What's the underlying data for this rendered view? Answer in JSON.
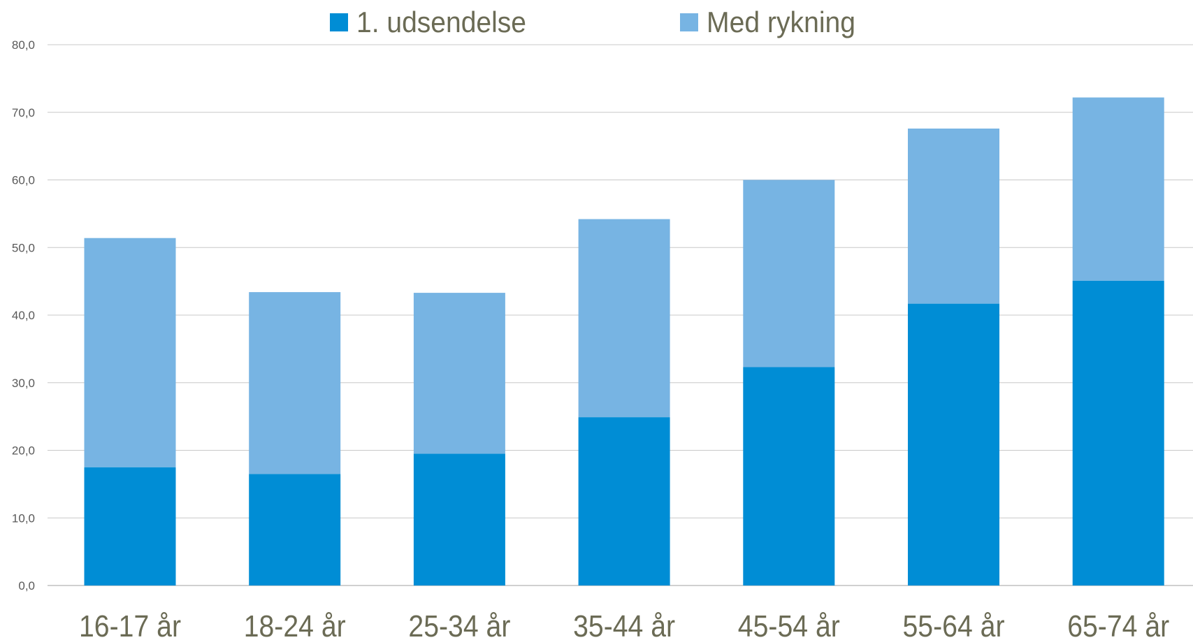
{
  "chart_data": {
    "type": "bar",
    "stacked": true,
    "categories": [
      "16-17 år",
      "18-24 år",
      "25-34 år",
      "35-44 år",
      "45-54 år",
      "55-64 år",
      "65-74 år"
    ],
    "series": [
      {
        "name": "1. udsendelse",
        "color": "#008dd5",
        "values": [
          17.5,
          16.5,
          19.5,
          24.9,
          32.3,
          41.7,
          45.1
        ]
      },
      {
        "name": "Med rykning",
        "color": "#77b4e3",
        "values": [
          33.9,
          26.9,
          23.8,
          29.3,
          27.7,
          25.9,
          27.1
        ]
      }
    ],
    "ylim": [
      0,
      80
    ],
    "yticks": [
      "0,0",
      "10,0",
      "20,0",
      "30,0",
      "40,0",
      "50,0",
      "60,0",
      "70,0",
      "80,0"
    ],
    "ytick_values": [
      0,
      10,
      20,
      30,
      40,
      50,
      60,
      70,
      80
    ],
    "grid": true,
    "legend_position": "top-center",
    "title": "",
    "xlabel": "",
    "ylabel": ""
  }
}
